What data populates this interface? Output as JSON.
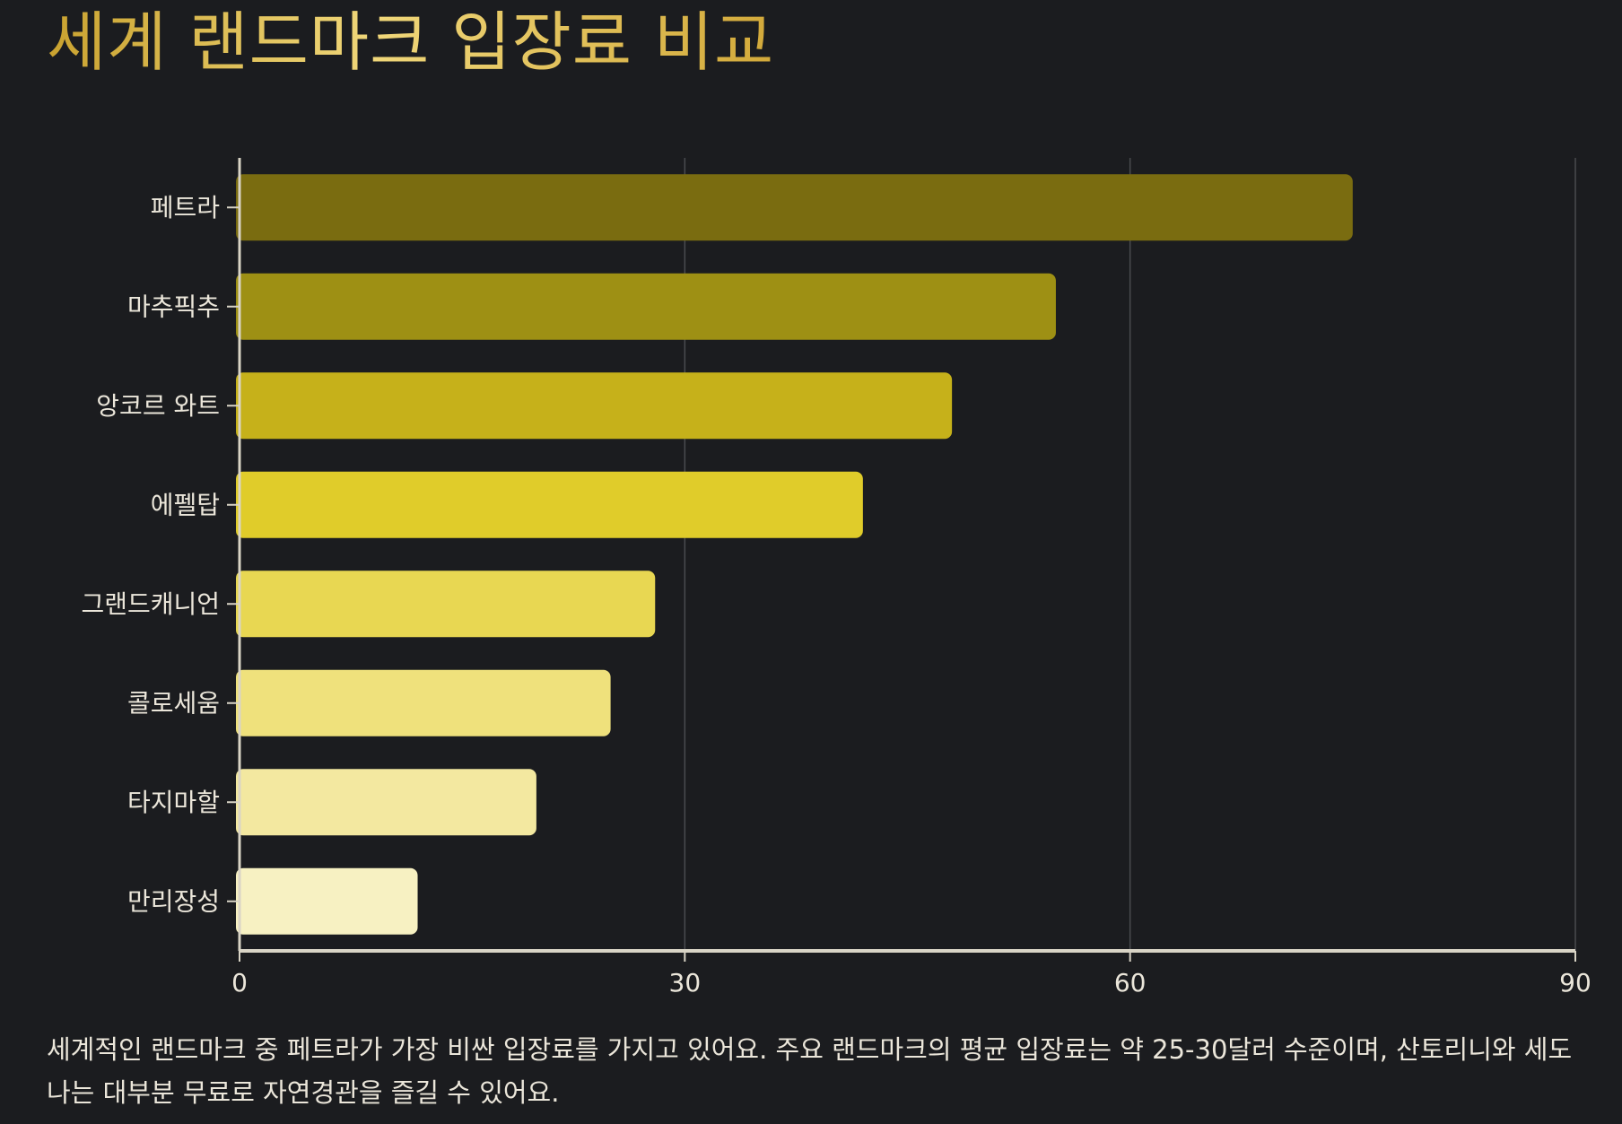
{
  "title": "세계 랜드마크 입장료 비교",
  "caption": "세계적인 랜드마크 중 페트라가 가장 비싼 입장료를 가지고 있어요. 주요 랜드마크의 평균 입장료는 약 25-30달러 수준이며, 산토리니와 세도나는 대부분 무료로 자연경관을 즐길 수 있어요.",
  "chart_data": {
    "type": "bar",
    "orientation": "horizontal",
    "categories": [
      "페트라",
      "마추픽추",
      "앙코르 와트",
      "에펠탑",
      "그랜드캐니언",
      "콜로세움",
      "타지마할",
      "만리장성"
    ],
    "values": [
      75,
      55,
      48,
      42,
      28,
      25,
      20,
      12
    ],
    "colors": [
      "#7a6c10",
      "#9e9014",
      "#c6b11a",
      "#e0cc2a",
      "#e8d752",
      "#efe17c",
      "#f3e8a0",
      "#f7f1c2"
    ],
    "xlim": [
      0,
      90
    ],
    "xticks": [
      0,
      30,
      60,
      90
    ],
    "grid": true,
    "legend": "none"
  }
}
